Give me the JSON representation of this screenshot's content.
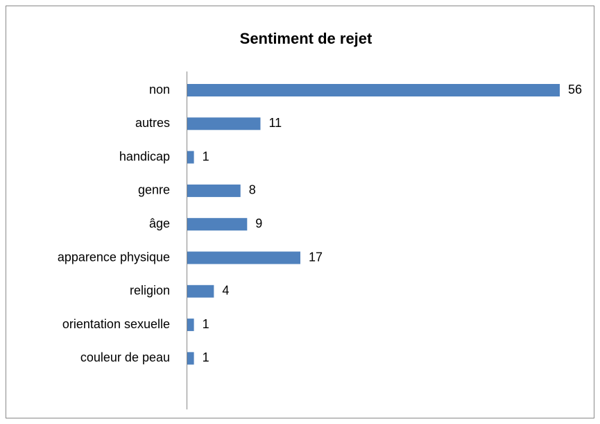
{
  "chart_data": {
    "type": "barh",
    "title": "Sentiment de rejet",
    "categories": [
      "non",
      "autres",
      "handicap",
      "genre",
      "âge",
      "apparence physique",
      "religion",
      "orientation sexuelle",
      "couleur de peau"
    ],
    "values": [
      56,
      11,
      1,
      8,
      9,
      17,
      4,
      1,
      1
    ],
    "color": "#4f81bd"
  }
}
